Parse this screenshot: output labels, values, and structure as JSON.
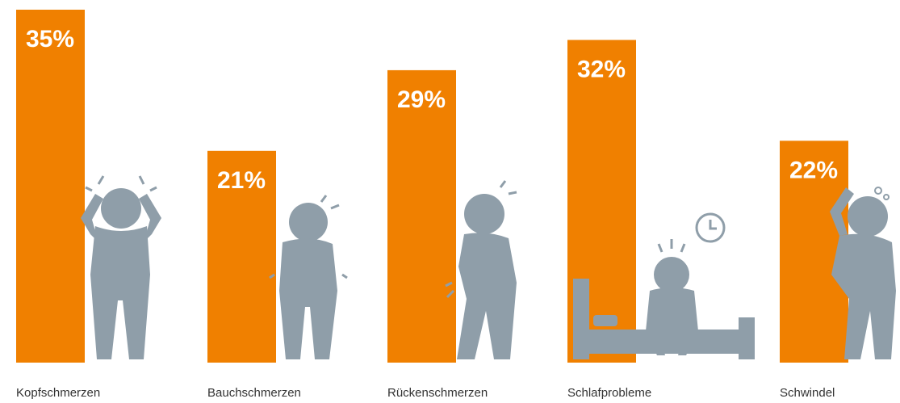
{
  "chart_data": {
    "type": "bar",
    "categories": [
      "Kopfschmerzen",
      "Bauchschmerzen",
      "Rückenschmerzen",
      "Schlafprobleme",
      "Schwindel"
    ],
    "values": [
      35,
      21,
      29,
      32,
      22
    ],
    "value_labels": [
      "35%",
      "21%",
      "29%",
      "32%",
      "22%"
    ],
    "color": "#f08000"
  }
}
